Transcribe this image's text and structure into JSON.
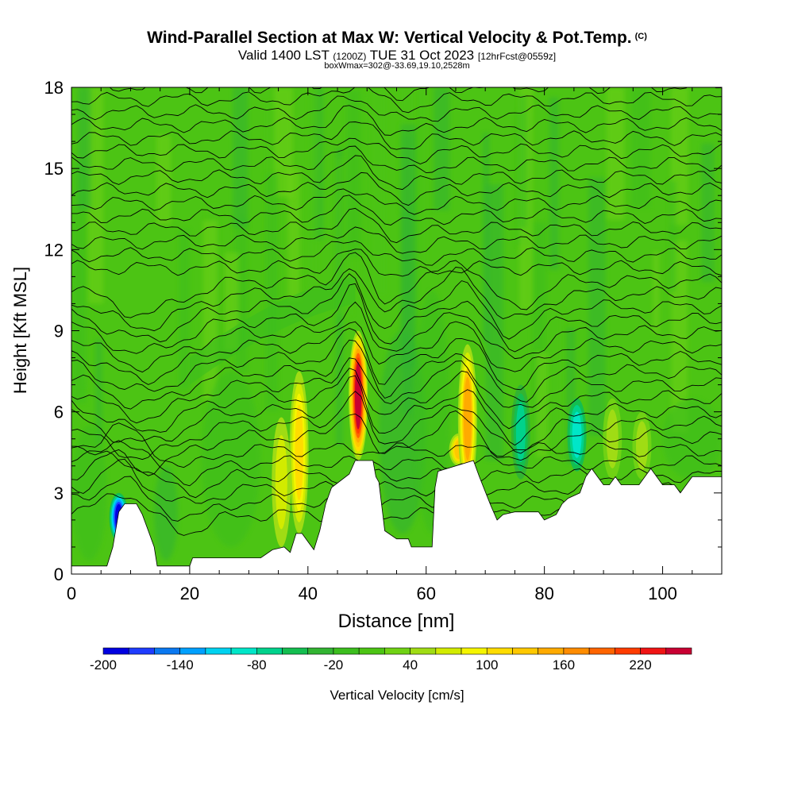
{
  "title": {
    "main": "Wind-Parallel Section at Max W: Vertical Velocity & Pot.Temp.",
    "copyright": "(C)",
    "valid_prefix": "Valid 1400 LST",
    "valid_utc": "(1200Z)",
    "valid_date": "TUE 31 Oct 2023",
    "forecast_tag": "[12hrFcst@0559z]",
    "box_info": "boxWmax=302@-33.69,19.10,2528m"
  },
  "chart_data": {
    "type": "heatmap",
    "xlabel": "Distance [nm]",
    "ylabel": "Height [Kft MSL]",
    "xlim": [
      0,
      110
    ],
    "ylim": [
      0,
      18
    ],
    "xticks": [
      0,
      20,
      40,
      60,
      80,
      100
    ],
    "yticks": [
      0,
      3,
      6,
      9,
      12,
      15,
      18
    ],
    "colorbar": {
      "label": "Vertical Velocity [cm/s]",
      "tick_labels": [
        "-200",
        "-140",
        "-80",
        "-20",
        "40",
        "100",
        "160",
        "220"
      ],
      "tick_values": [
        -200,
        -140,
        -80,
        -20,
        40,
        100,
        160,
        220
      ],
      "min": -200,
      "max": 250,
      "step": 20,
      "colors": [
        "#0000e0",
        "#1e3cff",
        "#0a78f0",
        "#00a0ff",
        "#00d2f0",
        "#00e6c8",
        "#00d28c",
        "#14be50",
        "#32b432",
        "#3cbe1e",
        "#4cc414",
        "#70d214",
        "#a0dc14",
        "#d2eb00",
        "#f5f500",
        "#ffdc00",
        "#ffc800",
        "#ffaa00",
        "#ff8c00",
        "#ff6400",
        "#ff3c00",
        "#f01414",
        "#c80032"
      ]
    },
    "terrain_kft": [
      [
        0,
        0.3
      ],
      [
        6,
        0.3
      ],
      [
        7,
        1.0
      ],
      [
        8,
        2.3
      ],
      [
        9,
        2.6
      ],
      [
        11,
        2.6
      ],
      [
        12,
        2.2
      ],
      [
        13,
        1.6
      ],
      [
        14,
        1.0
      ],
      [
        14.5,
        0.3
      ],
      [
        20,
        0.3
      ],
      [
        20.5,
        0.6
      ],
      [
        26,
        0.6
      ],
      [
        32,
        0.6
      ],
      [
        34,
        0.9
      ],
      [
        36,
        1.0
      ],
      [
        37,
        0.8
      ],
      [
        38,
        1.5
      ],
      [
        39,
        1.5
      ],
      [
        40,
        1.2
      ],
      [
        41,
        0.9
      ],
      [
        42,
        1.6
      ],
      [
        43,
        2.6
      ],
      [
        44,
        3.2
      ],
      [
        47,
        3.7
      ],
      [
        48,
        4.2
      ],
      [
        51,
        4.2
      ],
      [
        51.5,
        3.6
      ],
      [
        52,
        3.4
      ],
      [
        53,
        1.6
      ],
      [
        55,
        1.3
      ],
      [
        57,
        1.3
      ],
      [
        57.5,
        1.0
      ],
      [
        61,
        1.0
      ],
      [
        61.5,
        3.2
      ],
      [
        62,
        3.8
      ],
      [
        68,
        4.2
      ],
      [
        69,
        3.6
      ],
      [
        71,
        2.5
      ],
      [
        72,
        2.0
      ],
      [
        73,
        2.2
      ],
      [
        75,
        2.3
      ],
      [
        78,
        2.3
      ],
      [
        79,
        2.3
      ],
      [
        80,
        2.0
      ],
      [
        82,
        2.2
      ],
      [
        83,
        2.6
      ],
      [
        84,
        2.8
      ],
      [
        86,
        3.0
      ],
      [
        87,
        3.6
      ],
      [
        88,
        3.9
      ],
      [
        89,
        3.6
      ],
      [
        90,
        3.3
      ],
      [
        91,
        3.3
      ],
      [
        92,
        3.6
      ],
      [
        93,
        3.3
      ],
      [
        96,
        3.3
      ],
      [
        97,
        3.6
      ],
      [
        98,
        3.9
      ],
      [
        99,
        3.6
      ],
      [
        100,
        3.3
      ],
      [
        102,
        3.3
      ],
      [
        103,
        3.0
      ],
      [
        104,
        3.3
      ],
      [
        105,
        3.6
      ],
      [
        110,
        3.6
      ]
    ],
    "updraft_cores": [
      {
        "x": 48.5,
        "z_bottom": 4.2,
        "z_top": 9.0,
        "max_cm_s": 240
      },
      {
        "x": 65.5,
        "z_bottom": 4.0,
        "z_top": 5.2,
        "max_cm_s": 130
      },
      {
        "x": 67.0,
        "z_bottom": 3.0,
        "z_top": 8.5,
        "max_cm_s": 150
      },
      {
        "x": 38.5,
        "z_bottom": 1.5,
        "z_top": 7.5,
        "max_cm_s": 110
      },
      {
        "x": 35.5,
        "z_bottom": 1.0,
        "z_top": 5.8,
        "max_cm_s": 60
      },
      {
        "x": 91.5,
        "z_bottom": 3.5,
        "z_top": 6.5,
        "max_cm_s": 50
      },
      {
        "x": 96.5,
        "z_bottom": 3.5,
        "z_top": 6.0,
        "max_cm_s": 45
      }
    ],
    "downdraft_cores": [
      {
        "x": 8.0,
        "z_bottom": 1.2,
        "z_top": 3.0,
        "min_cm_s": -190
      },
      {
        "x": 76.0,
        "z_bottom": 3.5,
        "z_top": 7.0,
        "min_cm_s": -75
      },
      {
        "x": 85.5,
        "z_bottom": 3.8,
        "z_top": 6.5,
        "min_cm_s": -95
      }
    ]
  }
}
